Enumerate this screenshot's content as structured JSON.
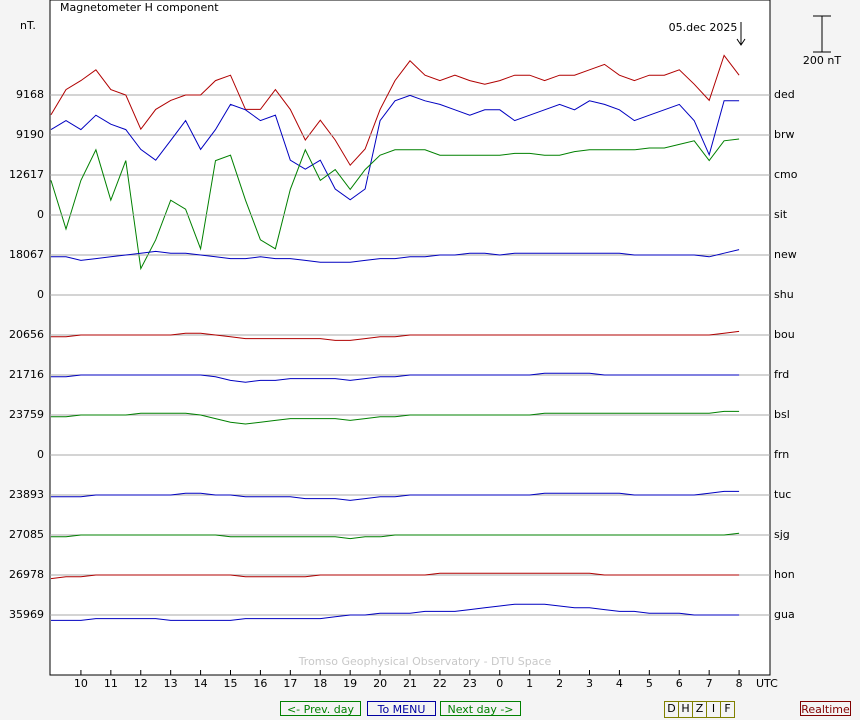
{
  "chart_data": {
    "type": "stackplot",
    "title": "Magnetometer H component",
    "unit": "nT.",
    "annotation": "05.dec 2025",
    "scale": {
      "value": 200,
      "label": "200 nT"
    },
    "xlabel": "UTC",
    "footer": "Tromso Geophysical Observatory - DTU Space",
    "xlim": [
      9,
      33
    ],
    "xticks": [
      10,
      11,
      12,
      13,
      14,
      15,
      16,
      17,
      18,
      19,
      20,
      21,
      22,
      23,
      {
        "value": 24,
        "label": "0"
      },
      {
        "value": 25,
        "label": "1"
      },
      {
        "value": 26,
        "label": "2"
      },
      {
        "value": 27,
        "label": "3"
      },
      {
        "value": 28,
        "label": "4"
      },
      {
        "value": 29,
        "label": "5"
      },
      {
        "value": 30,
        "label": "6"
      },
      {
        "value": 31,
        "label": "7"
      },
      {
        "value": 32,
        "label": "8"
      }
    ],
    "x": [
      9,
      9.5,
      10,
      10.5,
      11,
      11.5,
      12,
      12.5,
      13,
      13.5,
      14,
      14.5,
      15,
      15.5,
      16,
      16.5,
      17,
      17.5,
      18,
      18.5,
      19,
      19.5,
      20,
      20.5,
      21,
      21.5,
      22,
      22.5,
      23,
      23.5,
      24,
      24.5,
      25,
      25.5,
      26,
      26.5,
      27,
      27.5,
      28,
      28.5,
      29,
      29.5,
      30,
      30.5,
      31,
      31.5,
      32
    ],
    "rows": [
      {
        "code": "ded",
        "base": 9168,
        "color": "#b00000",
        "values": [
          -110,
          30,
          80,
          140,
          30,
          0,
          -190,
          -80,
          -30,
          0,
          0,
          80,
          110,
          -80,
          -80,
          30,
          -80,
          -250,
          -140,
          -250,
          -390,
          -300,
          -80,
          80,
          190,
          110,
          80,
          110,
          80,
          60,
          80,
          110,
          110,
          80,
          110,
          110,
          140,
          170,
          110,
          80,
          110,
          110,
          140,
          60,
          -30,
          220,
          110
        ]
      },
      {
        "code": "brw",
        "base": 9190,
        "color": "#0000c0",
        "values": [
          30,
          80,
          30,
          110,
          60,
          30,
          -80,
          -140,
          -30,
          80,
          -80,
          30,
          170,
          140,
          80,
          110,
          -140,
          -190,
          -140,
          -300,
          -360,
          -300,
          80,
          190,
          220,
          190,
          170,
          140,
          110,
          140,
          140,
          80,
          110,
          140,
          170,
          140,
          190,
          170,
          140,
          80,
          110,
          140,
          170,
          80,
          -110,
          190,
          190
        ]
      },
      {
        "code": "cmo",
        "base": 12617,
        "color": "#008000",
        "values": [
          -30,
          -300,
          -30,
          140,
          -140,
          80,
          -520,
          -360,
          -140,
          -190,
          -410,
          80,
          110,
          -140,
          -360,
          -410,
          -80,
          140,
          -30,
          30,
          -80,
          30,
          110,
          140,
          140,
          140,
          110,
          110,
          110,
          110,
          110,
          120,
          120,
          110,
          110,
          130,
          140,
          140,
          140,
          140,
          150,
          150,
          170,
          190,
          80,
          190,
          200
        ]
      },
      {
        "code": "sit",
        "base": 0
      },
      {
        "code": "new",
        "base": 18067,
        "color": "#0000c0",
        "values": [
          -10,
          -10,
          -30,
          -20,
          -10,
          0,
          10,
          20,
          10,
          10,
          0,
          -10,
          -20,
          -20,
          -10,
          -20,
          -20,
          -30,
          -40,
          -40,
          -40,
          -30,
          -20,
          -20,
          -10,
          -10,
          0,
          0,
          10,
          10,
          0,
          10,
          10,
          10,
          10,
          10,
          10,
          10,
          10,
          0,
          0,
          0,
          0,
          0,
          -10,
          10,
          30
        ]
      },
      {
        "code": "shu",
        "base": 0
      },
      {
        "code": "bou",
        "base": 20656,
        "color": "#b00000",
        "values": [
          -10,
          -10,
          0,
          0,
          0,
          0,
          0,
          0,
          0,
          10,
          10,
          0,
          -10,
          -20,
          -20,
          -20,
          -20,
          -20,
          -20,
          -30,
          -30,
          -20,
          -10,
          -10,
          0,
          0,
          0,
          0,
          0,
          0,
          0,
          0,
          0,
          0,
          0,
          0,
          0,
          0,
          0,
          0,
          0,
          0,
          0,
          0,
          0,
          10,
          20
        ]
      },
      {
        "code": "frd",
        "base": 21716,
        "color": "#0000c0",
        "values": [
          -10,
          -10,
          0,
          0,
          0,
          0,
          0,
          0,
          0,
          0,
          0,
          -10,
          -30,
          -40,
          -30,
          -30,
          -20,
          -20,
          -20,
          -20,
          -30,
          -20,
          -10,
          -10,
          0,
          0,
          0,
          0,
          0,
          0,
          0,
          0,
          0,
          10,
          10,
          10,
          10,
          0,
          0,
          0,
          0,
          0,
          0,
          0,
          0,
          0,
          0
        ]
      },
      {
        "code": "bsl",
        "base": 23759,
        "color": "#008000",
        "values": [
          -10,
          -10,
          0,
          0,
          0,
          0,
          10,
          10,
          10,
          10,
          0,
          -20,
          -40,
          -50,
          -40,
          -30,
          -20,
          -20,
          -20,
          -20,
          -30,
          -20,
          -10,
          -10,
          0,
          0,
          0,
          0,
          0,
          0,
          0,
          0,
          0,
          10,
          10,
          10,
          10,
          10,
          10,
          10,
          10,
          10,
          10,
          10,
          10,
          20,
          20
        ]
      },
      {
        "code": "frn",
        "base": 0
      },
      {
        "code": "tuc",
        "base": 23893,
        "color": "#0000c0",
        "values": [
          -10,
          -10,
          -10,
          0,
          0,
          0,
          0,
          0,
          0,
          10,
          10,
          0,
          0,
          -10,
          -10,
          -10,
          -10,
          -20,
          -20,
          -20,
          -30,
          -20,
          -10,
          -10,
          0,
          0,
          0,
          0,
          0,
          0,
          0,
          0,
          0,
          10,
          10,
          10,
          10,
          10,
          10,
          0,
          0,
          0,
          0,
          0,
          10,
          20,
          20
        ]
      },
      {
        "code": "sjg",
        "base": 27085,
        "color": "#008000",
        "values": [
          -10,
          -10,
          0,
          0,
          0,
          0,
          0,
          0,
          0,
          0,
          0,
          0,
          -10,
          -10,
          -10,
          -10,
          -10,
          -10,
          -10,
          -10,
          -20,
          -10,
          -10,
          0,
          0,
          0,
          0,
          0,
          0,
          0,
          0,
          0,
          0,
          0,
          0,
          0,
          0,
          0,
          0,
          0,
          0,
          0,
          0,
          0,
          0,
          0,
          10
        ]
      },
      {
        "code": "hon",
        "base": 26978,
        "color": "#b00000",
        "values": [
          -20,
          -10,
          -10,
          0,
          0,
          0,
          0,
          0,
          0,
          0,
          0,
          0,
          0,
          -10,
          -10,
          -10,
          -10,
          -10,
          0,
          0,
          0,
          0,
          0,
          0,
          0,
          0,
          10,
          10,
          10,
          10,
          10,
          10,
          10,
          10,
          10,
          10,
          10,
          0,
          0,
          0,
          0,
          0,
          0,
          0,
          0,
          0,
          0
        ]
      },
      {
        "code": "gua",
        "base": 35969,
        "color": "#0000c0",
        "values": [
          -30,
          -30,
          -30,
          -20,
          -20,
          -20,
          -20,
          -20,
          -30,
          -30,
          -30,
          -30,
          -30,
          -20,
          -20,
          -20,
          -20,
          -20,
          -20,
          -10,
          0,
          0,
          10,
          10,
          10,
          20,
          20,
          20,
          30,
          40,
          50,
          60,
          60,
          60,
          50,
          40,
          40,
          30,
          20,
          20,
          10,
          10,
          10,
          0,
          0,
          0,
          0
        ]
      }
    ]
  },
  "buttons": {
    "prev": "<- Prev. day",
    "menu": "To MENU",
    "next": "Next day ->",
    "components": [
      "D",
      "H",
      "Z",
      "I",
      "F"
    ],
    "realtime": "Realtime"
  }
}
